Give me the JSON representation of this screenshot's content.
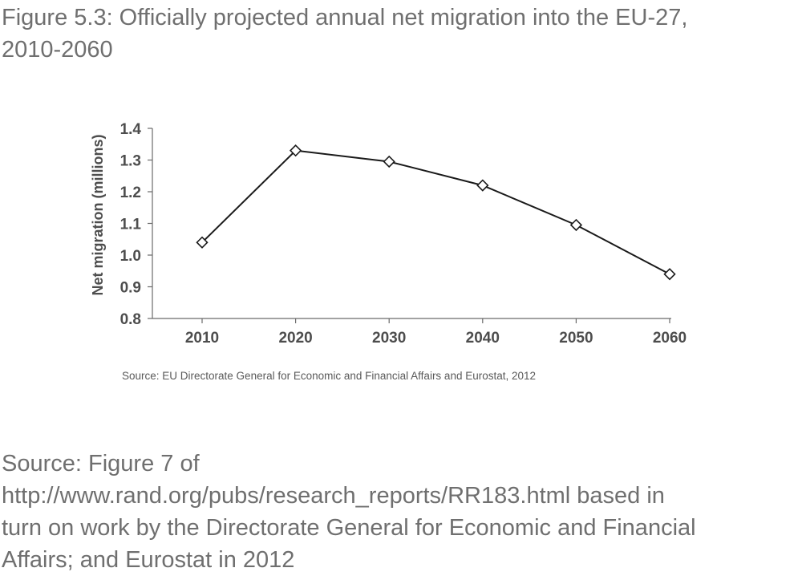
{
  "figure": {
    "title_line1": "Figure 5.3: Officially projected annual net migration into the EU-27,",
    "title_line2": "2010-2060"
  },
  "chart_data": {
    "type": "line",
    "title": "Figure 5.3: Officially projected annual net migration into the EU-27, 2010-2060",
    "xlabel": "",
    "ylabel": "Net migration (millions)",
    "x": [
      2010,
      2020,
      2030,
      2040,
      2050,
      2060
    ],
    "x_tick_labels": [
      "2010",
      "2020",
      "2030",
      "2040",
      "2050",
      "2060"
    ],
    "y_tick_labels": [
      "0.8",
      "0.9",
      "1.0",
      "1.1",
      "1.2",
      "1.3",
      "1.4"
    ],
    "ylim": [
      0.8,
      1.4
    ],
    "series": [
      {
        "values": [
          1.04,
          1.33,
          1.295,
          1.22,
          1.095,
          0.94
        ],
        "marker": "diamond",
        "color": "#1a1a1a"
      }
    ],
    "grid": false,
    "legend": "none",
    "source": "Source: EU Directorate General for Economic and Financial Affairs and Eurostat, 2012"
  },
  "page_source": {
    "line1": "Source: Figure 7 of",
    "line2": "http://www.rand.org/pubs/research_reports/RR183.html based in",
    "line3": "turn on work by the Directorate General for Economic and Financial",
    "line4": "Affairs; and Eurostat in 2012"
  }
}
